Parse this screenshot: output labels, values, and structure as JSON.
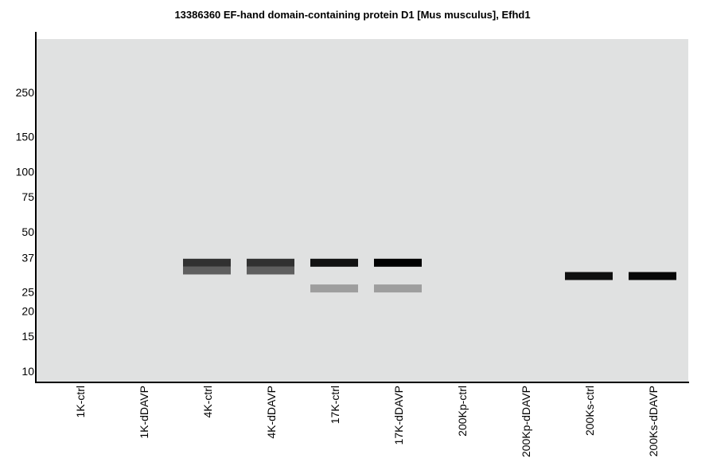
{
  "chart_data": {
    "type": "western-blot",
    "title": "13386360 EF-hand domain-containing protein D1 [Mus musculus], Efhd1",
    "y_scale": "log",
    "y_ticks": [
      "250",
      "150",
      "100",
      "75",
      "50",
      "37",
      "25",
      "20",
      "15",
      "10"
    ],
    "background_color": "#e0e1e1",
    "lanes": [
      "1K-ctrl",
      "1K-dDAVP",
      "4K-ctrl",
      "4K-dDAVP",
      "17K-ctrl",
      "17K-dDAVP",
      "200Kp-ctrl",
      "200Kp-dDAVP",
      "200Ks-ctrl",
      "200Ks-dDAVP"
    ],
    "bands": [
      {
        "lane": "4K-ctrl",
        "mw": 35,
        "intensity": 0.78
      },
      {
        "lane": "4K-ctrl",
        "mw": 32,
        "intensity": 0.58
      },
      {
        "lane": "4K-dDAVP",
        "mw": 35,
        "intensity": 0.78
      },
      {
        "lane": "4K-dDAVP",
        "mw": 32,
        "intensity": 0.58
      },
      {
        "lane": "17K-ctrl",
        "mw": 35,
        "intensity": 0.92
      },
      {
        "lane": "17K-dDAVP",
        "mw": 35,
        "intensity": 1.0
      },
      {
        "lane": "17K-ctrl",
        "mw": 26,
        "intensity": 0.3
      },
      {
        "lane": "17K-dDAVP",
        "mw": 26,
        "intensity": 0.3
      },
      {
        "lane": "200Ks-ctrl",
        "mw": 30,
        "intensity": 0.93
      },
      {
        "lane": "200Ks-dDAVP",
        "mw": 30,
        "intensity": 0.97
      }
    ]
  }
}
